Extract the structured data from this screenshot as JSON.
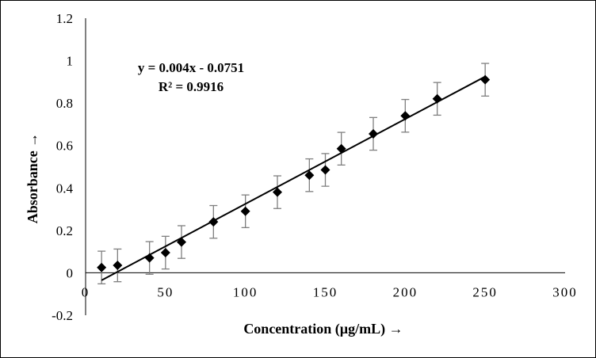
{
  "chart_data": {
    "type": "scatter",
    "title": "",
    "xlabel": "Concentration (µg/mL) →",
    "ylabel": "Absorbance →",
    "xlim": [
      0,
      300
    ],
    "ylim": [
      -0.2,
      1.2
    ],
    "x_ticks": [
      "0",
      "50",
      "100",
      "150",
      "200",
      "250",
      "300"
    ],
    "y_ticks": [
      "-0.2",
      "0",
      "0.2",
      "0.4",
      "0.6",
      "0.8",
      "1",
      "1.2"
    ],
    "x_tick_values": [
      0,
      50,
      100,
      150,
      200,
      250,
      300
    ],
    "y_tick_values": [
      -0.2,
      0,
      0.2,
      0.4,
      0.6,
      0.8,
      1,
      1.2
    ],
    "grid": false,
    "legend": "none",
    "series": [
      {
        "marker": "diamond",
        "color": "#000000",
        "x": [
          10,
          20,
          40,
          50,
          60,
          80,
          100,
          120,
          140,
          150,
          160,
          180,
          200,
          220,
          250
        ],
        "y": [
          0.025,
          0.035,
          0.07,
          0.095,
          0.145,
          0.24,
          0.29,
          0.38,
          0.46,
          0.485,
          0.585,
          0.655,
          0.74,
          0.82,
          0.91
        ],
        "error": [
          0.077,
          0.077,
          0.077,
          0.077,
          0.077,
          0.077,
          0.077,
          0.077,
          0.077,
          0.077,
          0.077,
          0.077,
          0.077,
          0.077,
          0.077
        ]
      }
    ],
    "trendline": {
      "type": "linear",
      "slope": 0.004,
      "intercept": -0.0751,
      "x_range": [
        10,
        250
      ],
      "equation": "y = 0.004x - 0.0751",
      "r_squared": "R² = 0.9916"
    }
  }
}
